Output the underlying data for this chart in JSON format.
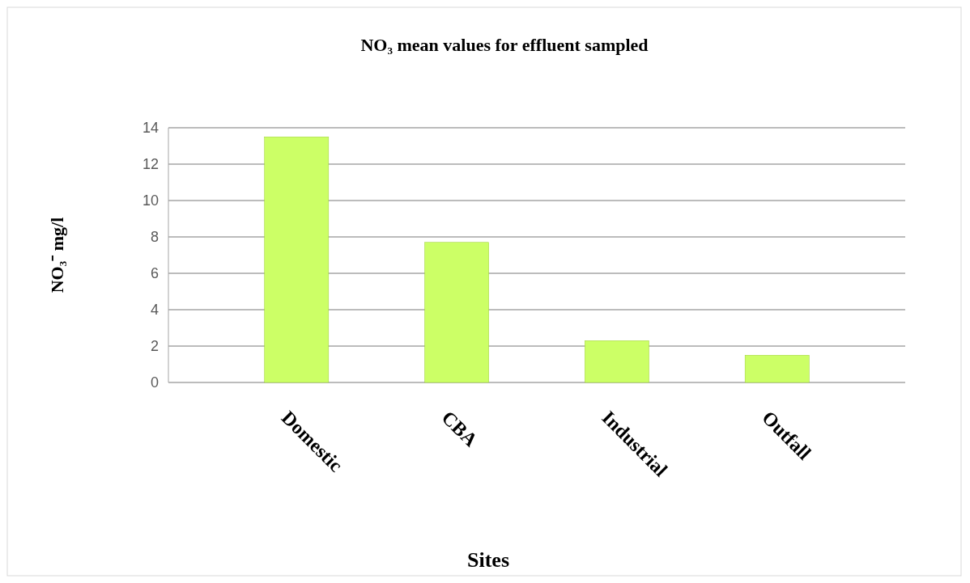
{
  "chart_data": {
    "type": "bar",
    "title": "NO₃ mean values for effluent sampled",
    "xlabel": "Sites",
    "ylabel": "NO₃⁻ mg/l",
    "categories": [
      "Domestic",
      "CBA",
      "Industrial",
      "Outfall"
    ],
    "values": [
      13.5,
      7.7,
      2.3,
      1.5
    ],
    "color": "#ccff66",
    "ylim": [
      0,
      14
    ],
    "yticks": [
      0,
      2,
      4,
      6,
      8,
      10,
      12,
      14
    ],
    "grid": "y"
  }
}
